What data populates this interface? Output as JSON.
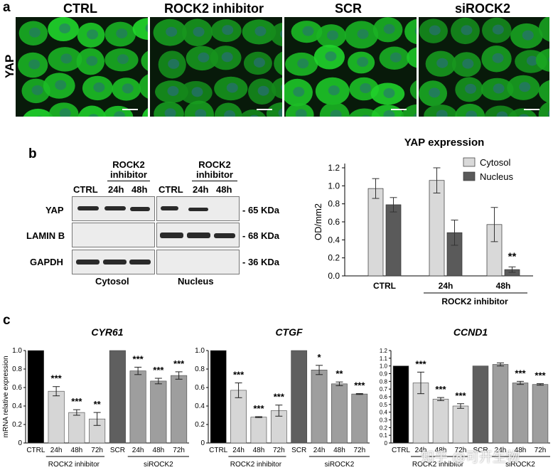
{
  "panel_labels": {
    "a": "a",
    "b": "b",
    "c": "c"
  },
  "microscopy": {
    "row_label": "YAP",
    "panels": [
      {
        "title": "CTRL",
        "intensity": 1.0
      },
      {
        "title": "ROCK2 inhibitor",
        "intensity": 0.55
      },
      {
        "title": "SCR",
        "intensity": 0.95
      },
      {
        "title": "siROCK2",
        "intensity": 0.6
      }
    ]
  },
  "western_blot": {
    "group_header_top": "ROCK2",
    "group_header_bottom": "inhibitor",
    "lane_labels_cyto": [
      "CTRL",
      "24h",
      "48h"
    ],
    "lane_labels_nuc": [
      "CTRL",
      "24h",
      "48h"
    ],
    "rows": [
      {
        "protein": "YAP",
        "size": "- 65 KDa"
      },
      {
        "protein": "LAMIN B",
        "size": "- 68 KDa"
      },
      {
        "protein": "GAPDH",
        "size": "- 36 KDa"
      }
    ],
    "fraction_labels": [
      "Cytosol",
      "Nucleus"
    ]
  },
  "chart_data": [
    {
      "type": "bar",
      "title": "YAP expression",
      "ylabel": "OD/mm2",
      "xlabel": "",
      "group_label": "ROCK2 inhibitor",
      "categories": [
        "CTRL",
        "24h",
        "48h"
      ],
      "ylim": [
        0,
        1.2
      ],
      "yticks": [
        "0.0",
        "0.2",
        "0.4",
        "0.6",
        "0.8",
        "1.0",
        "1.2"
      ],
      "series": [
        {
          "name": "Cytosol",
          "color": "#d9d9d9",
          "values": [
            0.97,
            1.06,
            0.57
          ],
          "errors": [
            0.11,
            0.14,
            0.19
          ]
        },
        {
          "name": "Nucleus",
          "color": "#5a5a5a",
          "values": [
            0.79,
            0.48,
            0.07
          ],
          "errors": [
            0.08,
            0.14,
            0.03
          ]
        }
      ],
      "annotations": [
        {
          "series": 1,
          "index": 2,
          "text": "**"
        }
      ],
      "legend": "top-right"
    },
    {
      "type": "bar",
      "title": "CYR61",
      "ylabel": "mRNA relative expression",
      "categories": [
        "CTRL",
        "24h",
        "48h",
        "72h",
        "SCR",
        "24h",
        "48h",
        "72h"
      ],
      "groups": [
        {
          "label": "ROCK2 inhibitor"
        },
        {
          "label": "siROCK2"
        }
      ],
      "ylim": [
        0,
        1.0
      ],
      "yticks": [
        "0",
        "0.2",
        "0.4",
        "0.6",
        "0.8",
        "1.0"
      ],
      "values": [
        1.0,
        0.56,
        0.33,
        0.26,
        1.0,
        0.78,
        0.67,
        0.73
      ],
      "errors": [
        0,
        0.05,
        0.03,
        0.07,
        0,
        0.04,
        0.03,
        0.04
      ],
      "colors": [
        "#000000",
        "#d6d6d6",
        "#d6d6d6",
        "#d6d6d6",
        "#5f5f5f",
        "#9e9e9e",
        "#9e9e9e",
        "#9e9e9e"
      ],
      "stars": [
        "",
        "***",
        "***",
        "**",
        "",
        "***",
        "***",
        "***"
      ]
    },
    {
      "type": "bar",
      "title": "CTGF",
      "ylabel": "",
      "categories": [
        "CTRL",
        "24h",
        "48h",
        "72h",
        "SCR",
        "24h",
        "48h",
        "72h"
      ],
      "groups": [
        {
          "label": "ROCK2 inhibitor"
        },
        {
          "label": "siROCK2"
        }
      ],
      "ylim": [
        0,
        1.0
      ],
      "yticks": [
        "0",
        "0.2",
        "0.4",
        "0.6",
        "0.8",
        "1.0"
      ],
      "values": [
        1.0,
        0.57,
        0.28,
        0.35,
        1.0,
        0.79,
        0.64,
        0.53
      ],
      "errors": [
        0,
        0.08,
        0.005,
        0.06,
        0,
        0.05,
        0.02,
        0.005
      ],
      "colors": [
        "#000000",
        "#d6d6d6",
        "#d6d6d6",
        "#d6d6d6",
        "#5f5f5f",
        "#9e9e9e",
        "#9e9e9e",
        "#9e9e9e"
      ],
      "stars": [
        "",
        "***",
        "***",
        "***",
        "",
        "*",
        "**",
        "***"
      ]
    },
    {
      "type": "bar",
      "title": "CCND1",
      "ylabel": "",
      "categories": [
        "CTRL",
        "24h",
        "48h",
        "72h",
        "SCR",
        "24h",
        "48h",
        "72h"
      ],
      "groups": [
        {
          "label": "ROCK2 inhibitor"
        },
        {
          "label": "siROCK2"
        }
      ],
      "ylim": [
        0,
        1.2
      ],
      "yticks": [
        "0",
        "0.1",
        "0.2",
        "0.3",
        "0.4",
        "0.5",
        "0.6",
        "0.7",
        "0.8",
        "0.9",
        "1.0",
        "1.1",
        "1.2"
      ],
      "values": [
        1.0,
        0.78,
        0.57,
        0.48,
        1.0,
        1.02,
        0.78,
        0.76
      ],
      "errors": [
        0,
        0.14,
        0.02,
        0.03,
        0,
        0.02,
        0.02,
        0.01
      ],
      "colors": [
        "#000000",
        "#d6d6d6",
        "#d6d6d6",
        "#d6d6d6",
        "#5f5f5f",
        "#9e9e9e",
        "#9e9e9e",
        "#9e9e9e"
      ],
      "stars": [
        "",
        "***",
        "***",
        "***",
        "",
        "",
        "***",
        "***"
      ]
    }
  ],
  "watermark": "知乎 @可开生物"
}
